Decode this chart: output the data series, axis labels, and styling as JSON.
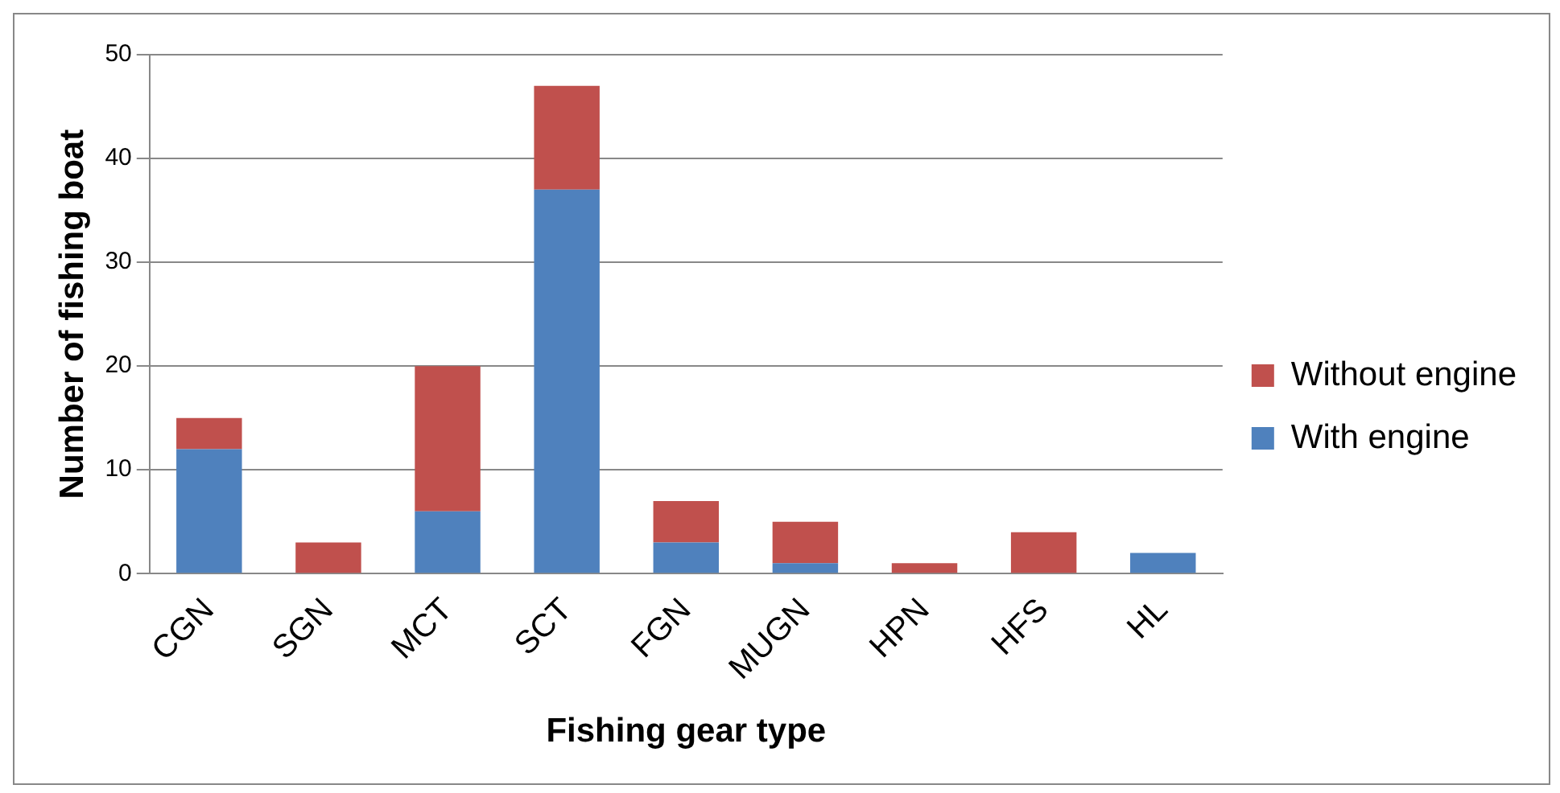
{
  "chart_data": {
    "type": "bar",
    "stacked": true,
    "xlabel": "Fishing gear type",
    "ylabel": "Number of fishing boat",
    "categories": [
      "CGN",
      "SGN",
      "MCT",
      "SCT",
      "FGN",
      "MUGN",
      "HPN",
      "HFS",
      "HL"
    ],
    "series": [
      {
        "name": "With engine",
        "color": "#4f81bd",
        "values": [
          12,
          0,
          6,
          37,
          3,
          1,
          0,
          0,
          2
        ]
      },
      {
        "name": "Without engine",
        "color": "#c0504d",
        "values": [
          3,
          3,
          14,
          10,
          4,
          4,
          1,
          4,
          0
        ]
      }
    ],
    "ylim": [
      0,
      50
    ],
    "yticks": [
      0,
      10,
      20,
      30,
      40,
      50
    ],
    "grid": "y",
    "legend": "right"
  }
}
